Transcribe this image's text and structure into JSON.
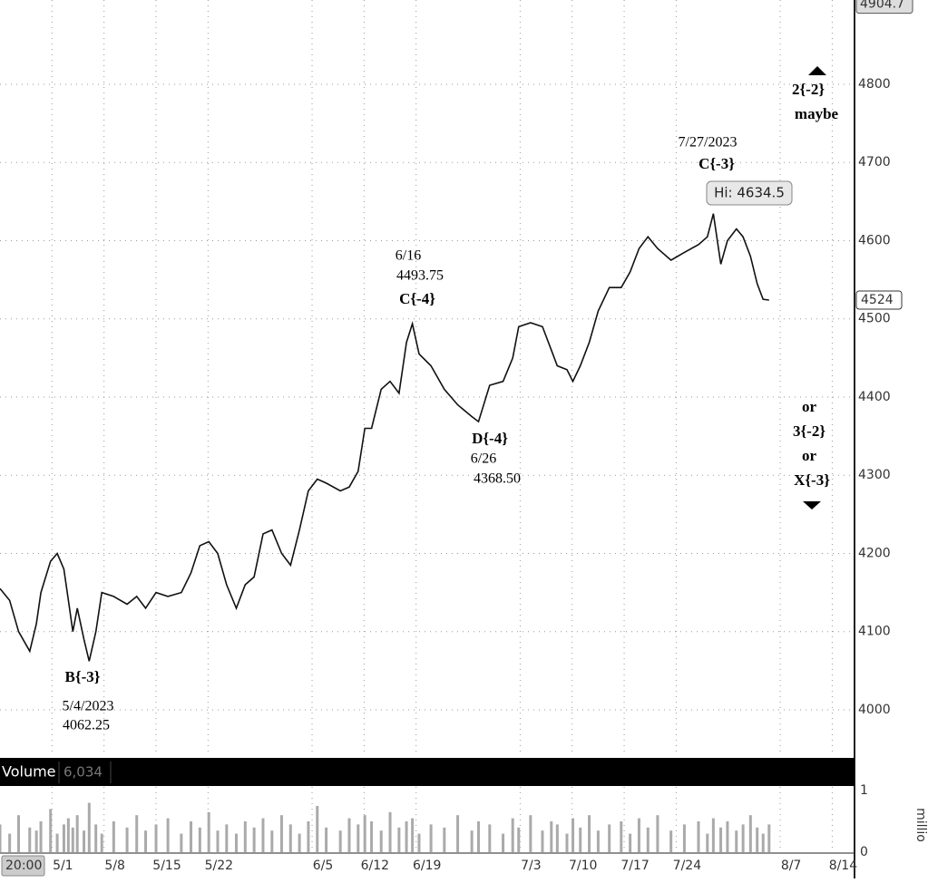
{
  "chart_data": {
    "type": "line",
    "x": [
      -7.0,
      -5.7,
      -4.5,
      -3.0,
      -2.1,
      -1.5,
      -0.2,
      0.7,
      1.6,
      2.2,
      2.8,
      3.4,
      4.3,
      5.0,
      5.9,
      6.7,
      8.3,
      10.1,
      11.4,
      12.6,
      14.0,
      15.6,
      17.4,
      18.7,
      19.9,
      21.1,
      22.3,
      23.5,
      24.8,
      26.0,
      27.2,
      28.4,
      29.6,
      30.9,
      32.1,
      33.3,
      34.5,
      35.7,
      36.9,
      38.8,
      40.0,
      41.2,
      42.1,
      43.0,
      44.3,
      45.5,
      46.7,
      47.7,
      48.5,
      49.4,
      51.0,
      52.8,
      54.6,
      56.5,
      57.4,
      58.9,
      60.7,
      62.0,
      62.8,
      64.4,
      66.0,
      67.2,
      68.0,
      69.3,
      70.1,
      71.1,
      72.3,
      73.5,
      75.0,
      76.6,
      77.8,
      79.0,
      80.2,
      81.5,
      83.3,
      85.1,
      87.0,
      88.2,
      89.0,
      90.0,
      90.9,
      92.1,
      93.0,
      94.0,
      94.9,
      95.7,
      96.5
    ],
    "values": [
      4155,
      4140,
      4100,
      4075,
      4110,
      4150,
      4190,
      4200,
      4180,
      4140,
      4100,
      4130,
      4090,
      4062.25,
      4100,
      4150,
      4145,
      4135,
      4145,
      4130,
      4150,
      4145,
      4150,
      4175,
      4210,
      4215,
      4200,
      4160,
      4130,
      4160,
      4170,
      4225,
      4230,
      4200,
      4185,
      4230,
      4280,
      4295,
      4290,
      4280,
      4285,
      4305,
      4360,
      4360,
      4410,
      4420,
      4405,
      4470,
      4493.75,
      4455,
      4440,
      4410,
      4390,
      4375,
      4368.5,
      4415,
      4420,
      4450,
      4490,
      4495,
      4490,
      4460,
      4440,
      4435,
      4420,
      4440,
      4470,
      4510,
      4540,
      4540,
      4560,
      4590,
      4605,
      4590,
      4575,
      4585,
      4595,
      4605,
      4634.5,
      4570,
      4600,
      4615,
      4605,
      4580,
      4545,
      4525,
      4524
    ],
    "color": "#111111",
    "xlim": [
      -7,
      108
    ],
    "xticks": [
      {
        "value": 0,
        "label": "5/1"
      },
      {
        "value": 7,
        "label": "5/8"
      },
      {
        "value": 14,
        "label": "5/15"
      },
      {
        "value": 21,
        "label": "5/22"
      },
      {
        "value": 35,
        "label": "6/5"
      },
      {
        "value": 42,
        "label": "6/12"
      },
      {
        "value": 49,
        "label": "6/19"
      },
      {
        "value": 63,
        "label": "7/3"
      },
      {
        "value": 70,
        "label": "7/10"
      },
      {
        "value": 77,
        "label": "7/17"
      },
      {
        "value": 84,
        "label": "7/24"
      },
      {
        "value": 98,
        "label": "8/7"
      },
      {
        "value": 105,
        "label": "8/14"
      }
    ],
    "ylim": [
      3942.0,
      4907.8
    ],
    "yticks": [
      4000,
      4100,
      4200,
      4300,
      4400,
      4500,
      4600,
      4700,
      4800
    ],
    "scale_high": 4904.7,
    "last_price": 4524,
    "time_label": "20:00",
    "grid": true,
    "annotations": [
      "B{-3}",
      "5/4/2023",
      "4062.25",
      "6/16",
      "4493.75",
      "C{-4}",
      "D{-4}",
      "6/26",
      "4368.50",
      "7/27/2023",
      "C{-3}",
      "Hi: 4634.5",
      "2{-2}",
      "maybe",
      "or",
      "3{-2}",
      "or",
      "X{-3}"
    ],
    "volume": {
      "title": "Volume",
      "last": "6,034",
      "unit": "millio",
      "color": "#aaaaaa",
      "ylim": [
        0,
        1
      ],
      "yticks": [
        0,
        1
      ],
      "values": [
        0.45,
        0.3,
        0.6,
        0.4,
        0.35,
        0.5,
        0.7,
        0.3,
        0.45,
        0.55,
        0.4,
        0.6,
        0.35,
        0.8,
        0.45,
        0.3,
        0.5,
        0.4,
        0.6,
        0.35,
        0.45,
        0.55,
        0.3,
        0.5,
        0.4,
        0.65,
        0.35,
        0.45,
        0.3,
        0.5,
        0.4,
        0.55,
        0.35,
        0.6,
        0.45,
        0.3,
        0.5,
        0.75,
        0.4,
        0.35,
        0.55,
        0.45,
        0.6,
        0.5,
        0.35,
        0.65,
        0.4,
        0.5,
        0.55,
        0.3,
        0.45,
        0.4,
        0.6,
        0.35,
        0.5,
        0.45,
        0.3,
        0.55,
        0.4,
        0.6,
        0.35,
        0.5,
        0.45,
        0.3,
        0.55,
        0.4,
        0.6,
        0.35,
        0.45,
        0.5,
        0.3,
        0.55,
        0.4,
        0.6,
        0.35,
        0.45,
        0.5,
        0.3,
        0.55,
        0.4,
        0.5,
        0.35,
        0.45,
        0.6,
        0.4,
        0.3,
        0.45
      ]
    }
  }
}
